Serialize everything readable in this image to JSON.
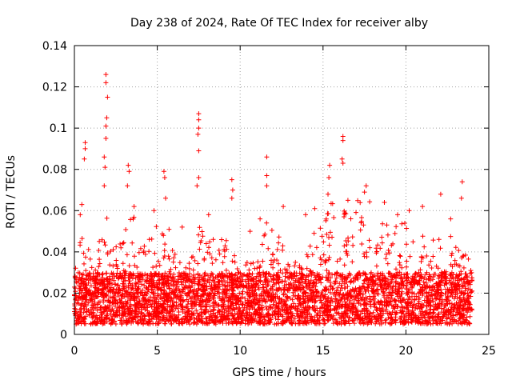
{
  "chart_data": {
    "type": "scatter",
    "title": "Day 238 of 2024, Rate Of TEC Index for receiver alby",
    "xlabel": "GPS time / hours",
    "ylabel": "ROTI / TECUs",
    "xlim": [
      0,
      25
    ],
    "ylim": [
      0,
      0.14
    ],
    "x_ticks": [
      0,
      5,
      10,
      15,
      20,
      25
    ],
    "y_ticks": [
      0,
      0.02,
      0.04,
      0.06,
      0.08,
      0.1,
      0.12,
      0.14
    ],
    "x_tick_labels": [
      "0",
      "5",
      "10",
      "15",
      "20",
      "25"
    ],
    "y_tick_labels": [
      "0",
      "0.02",
      "0.04",
      "0.06",
      "0.08",
      "0.1",
      "0.12",
      "0.14"
    ],
    "grid": true,
    "marker": "plus",
    "color": "#ff0000",
    "x_range": [
      0,
      24
    ],
    "base_level": [
      0.005,
      0.03
    ],
    "peaks": [
      {
        "x": 1.9,
        "y": 0.126
      },
      {
        "x": 1.9,
        "y": 0.122
      },
      {
        "x": 2.0,
        "y": 0.115
      },
      {
        "x": 1.95,
        "y": 0.105
      },
      {
        "x": 1.9,
        "y": 0.101
      },
      {
        "x": 1.9,
        "y": 0.095
      },
      {
        "x": 0.65,
        "y": 0.093
      },
      {
        "x": 0.65,
        "y": 0.09
      },
      {
        "x": 0.6,
        "y": 0.085
      },
      {
        "x": 1.8,
        "y": 0.086
      },
      {
        "x": 1.85,
        "y": 0.081
      },
      {
        "x": 1.8,
        "y": 0.072
      },
      {
        "x": 7.5,
        "y": 0.107
      },
      {
        "x": 7.5,
        "y": 0.104
      },
      {
        "x": 7.5,
        "y": 0.1
      },
      {
        "x": 7.45,
        "y": 0.097
      },
      {
        "x": 7.5,
        "y": 0.089
      },
      {
        "x": 7.5,
        "y": 0.076
      },
      {
        "x": 7.4,
        "y": 0.072
      },
      {
        "x": 16.2,
        "y": 0.096
      },
      {
        "x": 16.2,
        "y": 0.094
      },
      {
        "x": 16.15,
        "y": 0.085
      },
      {
        "x": 16.2,
        "y": 0.083
      },
      {
        "x": 11.6,
        "y": 0.086
      },
      {
        "x": 11.6,
        "y": 0.077
      },
      {
        "x": 11.6,
        "y": 0.072
      },
      {
        "x": 3.25,
        "y": 0.082
      },
      {
        "x": 3.3,
        "y": 0.079
      },
      {
        "x": 3.2,
        "y": 0.072
      },
      {
        "x": 5.4,
        "y": 0.079
      },
      {
        "x": 5.45,
        "y": 0.076
      },
      {
        "x": 5.5,
        "y": 0.066
      },
      {
        "x": 9.5,
        "y": 0.075
      },
      {
        "x": 9.55,
        "y": 0.07
      },
      {
        "x": 9.5,
        "y": 0.066
      },
      {
        "x": 15.4,
        "y": 0.082
      },
      {
        "x": 15.35,
        "y": 0.076
      },
      {
        "x": 15.3,
        "y": 0.068
      },
      {
        "x": 17.6,
        "y": 0.072
      },
      {
        "x": 17.5,
        "y": 0.069
      },
      {
        "x": 23.4,
        "y": 0.074
      },
      {
        "x": 23.35,
        "y": 0.066
      },
      {
        "x": 22.1,
        "y": 0.068
      },
      {
        "x": 20.2,
        "y": 0.06
      },
      {
        "x": 12.6,
        "y": 0.062
      },
      {
        "x": 0.45,
        "y": 0.063
      },
      {
        "x": 0.35,
        "y": 0.058
      },
      {
        "x": 3.6,
        "y": 0.062
      },
      {
        "x": 8.1,
        "y": 0.058
      },
      {
        "x": 11.2,
        "y": 0.056
      },
      {
        "x": 13.95,
        "y": 0.058
      },
      {
        "x": 18.7,
        "y": 0.064
      },
      {
        "x": 21.0,
        "y": 0.062
      },
      {
        "x": 16.5,
        "y": 0.065
      },
      {
        "x": 4.8,
        "y": 0.06
      },
      {
        "x": 6.5,
        "y": 0.052
      },
      {
        "x": 10.6,
        "y": 0.05
      },
      {
        "x": 14.5,
        "y": 0.061
      },
      {
        "x": 19.5,
        "y": 0.058
      },
      {
        "x": 22.7,
        "y": 0.056
      }
    ]
  }
}
